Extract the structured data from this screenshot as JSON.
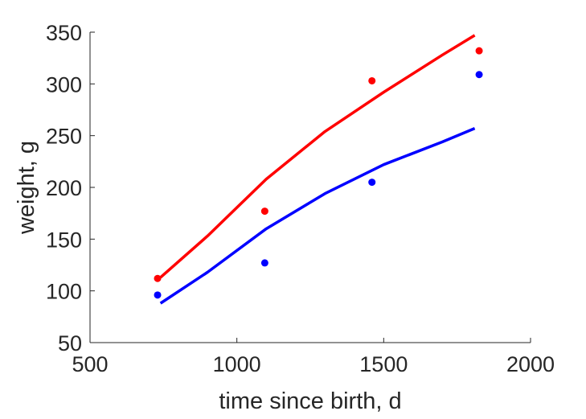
{
  "chart_data": {
    "type": "line",
    "xlabel": "time since birth, d",
    "ylabel": "weight, g",
    "xlim": [
      500,
      2000
    ],
    "ylim": [
      50,
      350
    ],
    "xticks": [
      500,
      1000,
      1500,
      2000
    ],
    "yticks": [
      50,
      100,
      150,
      200,
      250,
      300,
      350
    ],
    "xtick_labels": [
      "500",
      "1000",
      "1500",
      "2000"
    ],
    "ytick_labels": [
      "50",
      "100",
      "150",
      "200",
      "250",
      "300",
      "350"
    ],
    "grid": false,
    "legend": "none",
    "series": [
      {
        "kind": "scatter",
        "color": "#ff0000",
        "x": [
          730,
          1095,
          1460,
          1825
        ],
        "y": [
          112,
          177,
          303,
          332
        ]
      },
      {
        "kind": "scatter",
        "color": "#0000ff",
        "x": [
          730,
          1095,
          1460,
          1825
        ],
        "y": [
          96,
          127,
          205,
          309
        ]
      },
      {
        "kind": "line",
        "color": "#ff0000",
        "x": [
          740,
          900,
          1100,
          1300,
          1500,
          1700,
          1810
        ],
        "y": [
          113,
          153,
          208,
          254,
          292,
          328,
          347
        ]
      },
      {
        "kind": "line",
        "color": "#0000ff",
        "x": [
          740,
          900,
          1100,
          1300,
          1500,
          1700,
          1810
        ],
        "y": [
          88,
          118,
          160,
          194,
          222,
          244,
          257
        ]
      }
    ]
  }
}
